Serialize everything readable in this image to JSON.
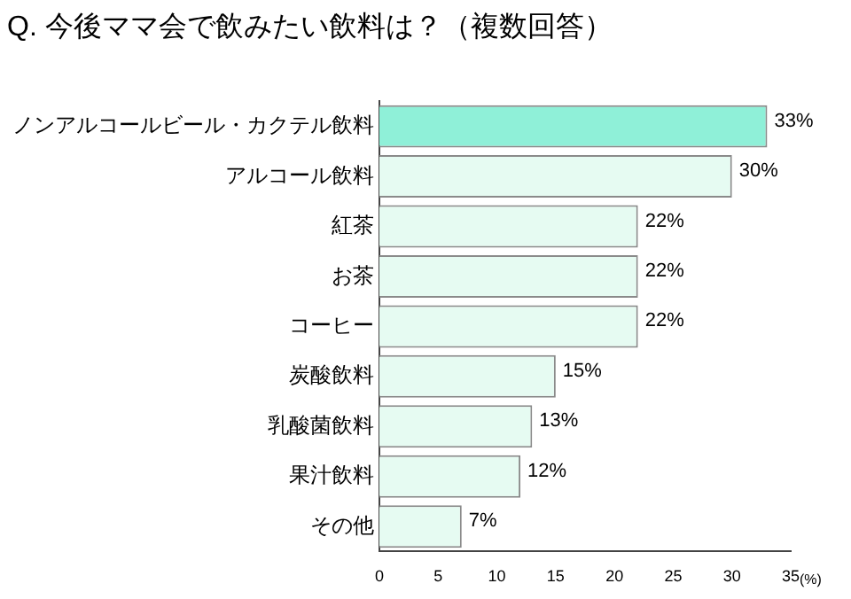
{
  "chart_data": {
    "type": "bar",
    "orientation": "horizontal",
    "title": "Q. 今後ママ会で飲みたい飲料は？（複数回答）",
    "xlabel": "(%)",
    "categories": [
      "ノンアルコールビール・カクテル飲料",
      "アルコール飲料",
      "紅茶",
      "お茶",
      "コーヒー",
      "炭酸飲料",
      "乳酸菌飲料",
      "果汁飲料",
      "その他"
    ],
    "values": [
      33,
      30,
      22,
      22,
      22,
      15,
      13,
      12,
      7
    ],
    "colors": [
      "#8ff0d8",
      "#e6fbf2",
      "#e6fbf2",
      "#e6fbf2",
      "#e6fbf2",
      "#e6fbf2",
      "#e6fbf2",
      "#e6fbf2",
      "#e6fbf2"
    ],
    "value_labels": [
      "33%",
      "30%",
      "22%",
      "22%",
      "22%",
      "15%",
      "13%",
      "12%",
      "7%"
    ],
    "xlim": [
      0,
      35
    ],
    "xticks": [
      0,
      5,
      10,
      15,
      20,
      25,
      30,
      35
    ],
    "grid": false,
    "legend": false
  }
}
